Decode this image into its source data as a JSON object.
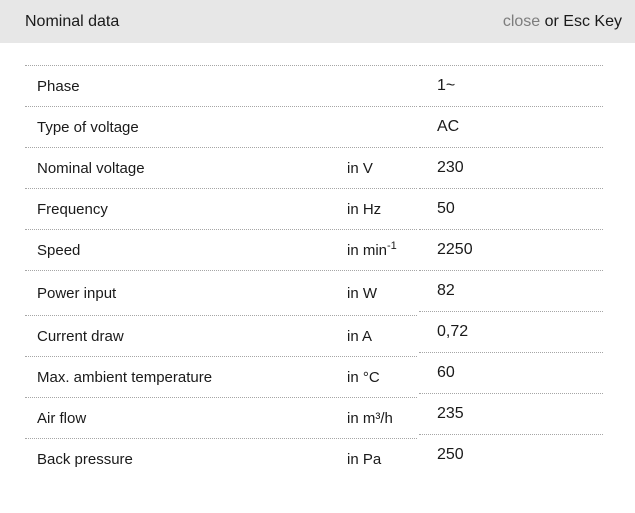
{
  "header": {
    "title": "Nominal data",
    "close_label": "close",
    "close_suffix": " or Esc Key"
  },
  "table": {
    "rows": [
      {
        "label": "Phase",
        "unit": "",
        "unit_sup": "",
        "value": "1~"
      },
      {
        "label": "Type of voltage",
        "unit": "",
        "unit_sup": "",
        "value": "AC"
      },
      {
        "label": "Nominal voltage",
        "unit": "in V",
        "unit_sup": "",
        "value": "230"
      },
      {
        "label": "Frequency",
        "unit": "in Hz",
        "unit_sup": "",
        "value": "50"
      },
      {
        "label": "Speed",
        "unit": "in min",
        "unit_sup": "-1",
        "value": "2250"
      },
      {
        "label": "Power input",
        "unit": "in W",
        "unit_sup": "",
        "value": "82"
      },
      {
        "label": "Current draw",
        "unit": "in A",
        "unit_sup": "",
        "value": "0,72"
      },
      {
        "label": "Max. ambient temperature",
        "unit": "in °C",
        "unit_sup": "",
        "value": "60"
      },
      {
        "label": "Air flow",
        "unit": "in m³/h",
        "unit_sup": "",
        "value": "235"
      },
      {
        "label": "Back pressure",
        "unit": "in Pa",
        "unit_sup": "",
        "value": "250"
      }
    ]
  },
  "colors": {
    "header_bg": "#e7e7e7",
    "divider": "#a6a6a6",
    "text": "#1a1a1a",
    "close_gray": "#7d7d7d",
    "page_bg": "#ffffff"
  }
}
